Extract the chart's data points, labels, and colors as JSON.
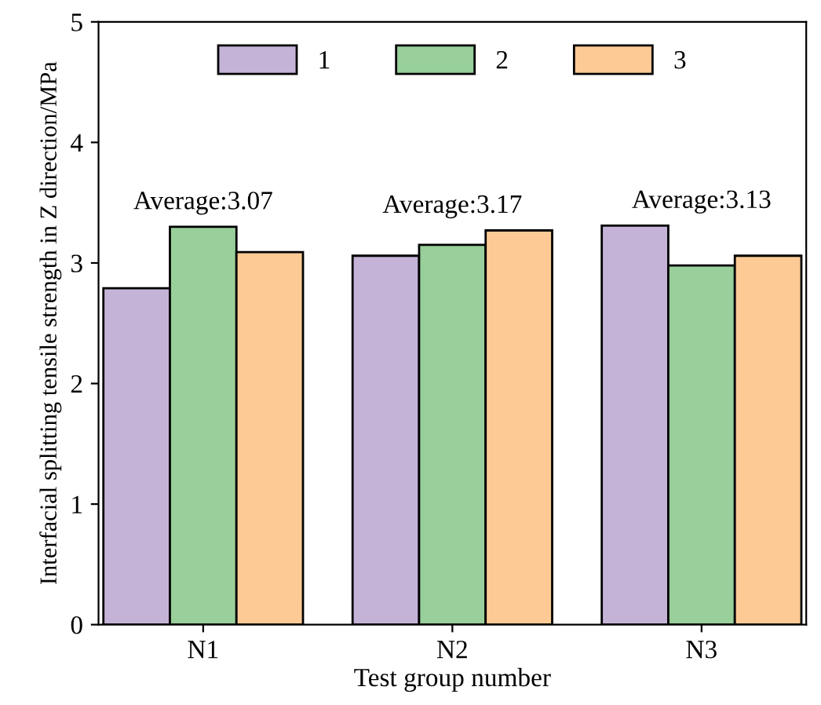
{
  "chart_data": {
    "type": "bar",
    "xlabel": "Test group number",
    "ylabel": "Interfacial splitting tensile strength in Z direction/MPa",
    "categories": [
      "N1",
      "N2",
      "N3"
    ],
    "series": [
      {
        "name": "1",
        "color": "#c5b3d7",
        "values": [
          2.79,
          3.06,
          3.31
        ]
      },
      {
        "name": "2",
        "color": "#98cf9a",
        "values": [
          3.3,
          3.15,
          2.98
        ]
      },
      {
        "name": "3",
        "color": "#fdca96",
        "values": [
          3.09,
          3.27,
          3.06
        ]
      }
    ],
    "annotations": [
      "Average:3.07",
      "Average:3.17",
      "Average:3.13"
    ],
    "ylim": [
      0,
      5
    ],
    "yticks": [
      0,
      1,
      2,
      3,
      4,
      5
    ],
    "grid": false,
    "legend": "top"
  }
}
